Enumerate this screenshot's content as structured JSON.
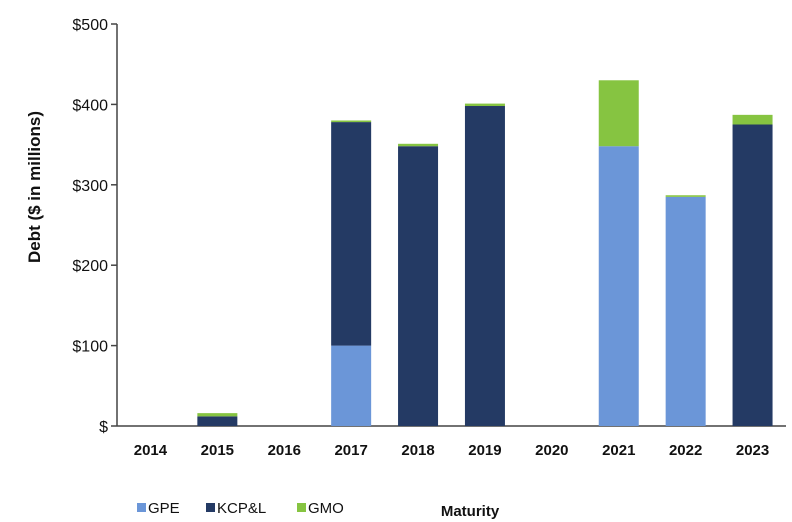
{
  "chart_data": {
    "type": "bar",
    "stacked": true,
    "categories": [
      "2014",
      "2015",
      "2016",
      "2017",
      "2018",
      "2019",
      "2020",
      "2021",
      "2022",
      "2023"
    ],
    "series": [
      {
        "name": "GPE",
        "color": "#6b96d8",
        "values": [
          0,
          0,
          0,
          100,
          0,
          0,
          0,
          348,
          285,
          0
        ]
      },
      {
        "name": "KCP&L",
        "color": "#243a64",
        "values": [
          0,
          12,
          0,
          278,
          348,
          398,
          0,
          0,
          0,
          375
        ]
      },
      {
        "name": "GMO",
        "color": "#86c441",
        "values": [
          0,
          4,
          0,
          2,
          3,
          3,
          0,
          82,
          2,
          12
        ]
      }
    ],
    "ylabel": "Debt ($ in millions)",
    "xlabel": "Maturity",
    "ylim": [
      0,
      500
    ],
    "yticks": [
      0,
      100,
      200,
      300,
      400,
      500
    ],
    "ytick_labels": [
      "$",
      "$100",
      "$200",
      "$300",
      "$400",
      "$500"
    ],
    "grid": false,
    "legend_position": "bottom-left"
  }
}
